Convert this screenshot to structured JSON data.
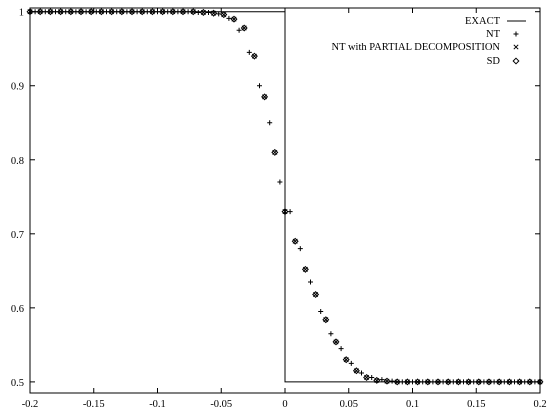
{
  "chart_data": {
    "type": "scatter",
    "title": "",
    "xlabel": "",
    "ylabel": "",
    "xlim": [
      -0.2,
      0.2
    ],
    "ylim": [
      0.485,
      1.005
    ],
    "grid": false,
    "legend_position": "top-right",
    "x_ticks": [
      -0.2,
      -0.15,
      -0.1,
      -0.05,
      0,
      0.05,
      0.1,
      0.15,
      0.2
    ],
    "x_tick_labels": [
      "-0.2",
      "-0.15",
      "-0.1",
      "-0.05",
      "0",
      "0.05",
      "0.1",
      "0.15",
      "0.2"
    ],
    "y_ticks": [
      0.5,
      0.6,
      0.7,
      0.8,
      0.9,
      1.0
    ],
    "y_tick_labels": [
      "0.5",
      "0.6",
      "0.7",
      "0.8",
      "0.9",
      "1"
    ],
    "exact": {
      "name": "EXACT",
      "x": [
        -0.2,
        0.0,
        0.0,
        0.2
      ],
      "y": [
        1.0,
        1.0,
        0.5,
        0.5
      ]
    },
    "nt": {
      "name": "NT",
      "x": [
        -0.196,
        -0.188,
        -0.18,
        -0.172,
        -0.164,
        -0.156,
        -0.148,
        -0.14,
        -0.132,
        -0.124,
        -0.116,
        -0.108,
        -0.1,
        -0.092,
        -0.084,
        -0.076,
        -0.068,
        -0.06,
        -0.052,
        -0.044,
        -0.036,
        -0.028,
        -0.02,
        -0.012,
        -0.004,
        0.004,
        0.012,
        0.02,
        0.028,
        0.036,
        0.044,
        0.052,
        0.06,
        0.068,
        0.076,
        0.084,
        0.092,
        0.1,
        0.108,
        0.116,
        0.124,
        0.132,
        0.14,
        0.148,
        0.156,
        0.164,
        0.172,
        0.18,
        0.188,
        0.196
      ],
      "y": [
        1.0,
        1.0,
        1.0,
        1.0,
        1.0,
        1.0,
        1.0,
        1.0,
        1.0,
        1.0,
        1.0,
        1.0,
        1.0,
        1.0,
        1.0,
        1.0,
        0.999,
        0.999,
        0.997,
        0.991,
        0.975,
        0.945,
        0.9,
        0.85,
        0.77,
        0.73,
        0.68,
        0.635,
        0.595,
        0.565,
        0.545,
        0.525,
        0.512,
        0.506,
        0.503,
        0.501,
        0.5,
        0.5,
        0.5,
        0.5,
        0.5,
        0.5,
        0.5,
        0.5,
        0.5,
        0.5,
        0.5,
        0.5,
        0.5,
        0.5
      ]
    },
    "nt_partial": {
      "name": "NT with PARTIAL DECOMPOSITION",
      "x": [
        -0.2,
        -0.192,
        -0.184,
        -0.176,
        -0.168,
        -0.16,
        -0.152,
        -0.144,
        -0.136,
        -0.128,
        -0.12,
        -0.112,
        -0.104,
        -0.096,
        -0.088,
        -0.08,
        -0.072,
        -0.064,
        -0.056,
        -0.048,
        -0.04,
        -0.032,
        -0.024,
        -0.016,
        -0.008,
        0.0,
        0.008,
        0.016,
        0.024,
        0.032,
        0.04,
        0.048,
        0.056,
        0.064,
        0.072,
        0.08,
        0.088,
        0.096,
        0.104,
        0.112,
        0.12,
        0.128,
        0.136,
        0.144,
        0.152,
        0.16,
        0.168,
        0.176,
        0.184,
        0.192,
        0.2
      ],
      "y": [
        1.0,
        1.0,
        1.0,
        1.0,
        1.0,
        1.0,
        1.0,
        1.0,
        1.0,
        1.0,
        1.0,
        1.0,
        1.0,
        1.0,
        1.0,
        1.0,
        1.0,
        0.999,
        0.998,
        0.996,
        0.99,
        0.978,
        0.94,
        0.885,
        0.81,
        0.73,
        0.69,
        0.652,
        0.618,
        0.584,
        0.554,
        0.53,
        0.515,
        0.506,
        0.502,
        0.501,
        0.5,
        0.5,
        0.5,
        0.5,
        0.5,
        0.5,
        0.5,
        0.5,
        0.5,
        0.5,
        0.5,
        0.5,
        0.5,
        0.5,
        0.5
      ]
    },
    "sd": {
      "name": "SD",
      "x": [
        -0.2,
        -0.192,
        -0.184,
        -0.176,
        -0.168,
        -0.16,
        -0.152,
        -0.144,
        -0.136,
        -0.128,
        -0.12,
        -0.112,
        -0.104,
        -0.096,
        -0.088,
        -0.08,
        -0.072,
        -0.064,
        -0.056,
        -0.048,
        -0.04,
        -0.032,
        -0.024,
        -0.016,
        -0.008,
        0.0,
        0.008,
        0.016,
        0.024,
        0.032,
        0.04,
        0.048,
        0.056,
        0.064,
        0.072,
        0.08,
        0.088,
        0.096,
        0.104,
        0.112,
        0.12,
        0.128,
        0.136,
        0.144,
        0.152,
        0.16,
        0.168,
        0.176,
        0.184,
        0.192,
        0.2
      ],
      "y": [
        1.0,
        1.0,
        1.0,
        1.0,
        1.0,
        1.0,
        1.0,
        1.0,
        1.0,
        1.0,
        1.0,
        1.0,
        1.0,
        1.0,
        1.0,
        1.0,
        1.0,
        0.999,
        0.998,
        0.996,
        0.99,
        0.978,
        0.94,
        0.885,
        0.81,
        0.73,
        0.69,
        0.652,
        0.618,
        0.584,
        0.554,
        0.53,
        0.515,
        0.506,
        0.502,
        0.501,
        0.5,
        0.5,
        0.5,
        0.5,
        0.5,
        0.5,
        0.5,
        0.5,
        0.5,
        0.5,
        0.5,
        0.5,
        0.5,
        0.5,
        0.5
      ]
    }
  }
}
